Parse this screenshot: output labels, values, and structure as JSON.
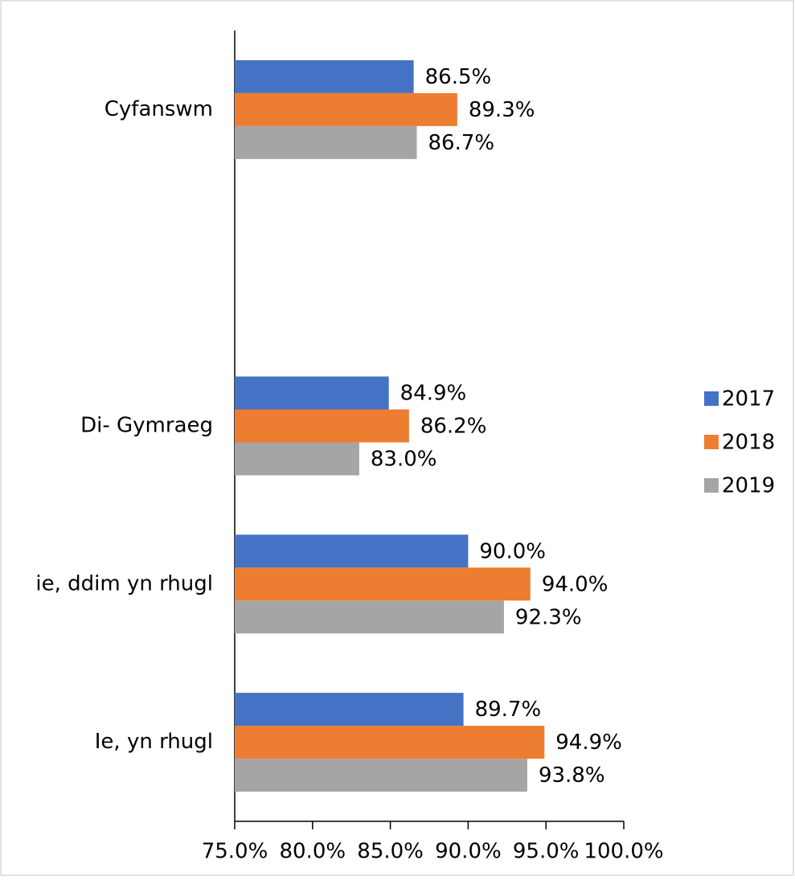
{
  "chart_data": {
    "type": "hbar",
    "categories": [
      "Cyfanswm",
      null,
      "Di- Gymraeg",
      "ie, ddim yn rhugl",
      "Ie, yn rhugl"
    ],
    "series": [
      {
        "name": "2017",
        "color": "#4472c4",
        "values": [
          86.5,
          null,
          84.9,
          90.0,
          89.7
        ],
        "value_labels": [
          "86.5%",
          null,
          "84.9%",
          "90.0%",
          "89.7%"
        ]
      },
      {
        "name": "2018",
        "color": "#ed7d31",
        "values": [
          89.3,
          null,
          86.2,
          94.0,
          94.9
        ],
        "value_labels": [
          "89.3%",
          null,
          "86.2%",
          "94.0%",
          "94.9%"
        ]
      },
      {
        "name": "2019",
        "color": "#a5a5a5",
        "values": [
          86.7,
          null,
          83.0,
          92.3,
          93.8
        ],
        "value_labels": [
          "86.7%",
          null,
          "83.0%",
          "92.3%",
          "93.8%"
        ]
      }
    ],
    "xlim": [
      75,
      100
    ],
    "xticks": [
      {
        "value": 75,
        "label": "75.0%"
      },
      {
        "value": 80,
        "label": "80.0%"
      },
      {
        "value": 85,
        "label": "85.0%"
      },
      {
        "value": 90,
        "label": "90.0%"
      },
      {
        "value": 95,
        "label": "95.0%"
      },
      {
        "value": 100,
        "label": "100.0%"
      }
    ],
    "legend": "right"
  }
}
